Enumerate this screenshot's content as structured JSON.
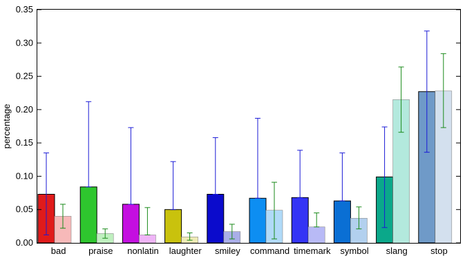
{
  "chart_data": {
    "type": "bar",
    "ylabel": "percentage",
    "xlabel": "",
    "title": "",
    "ylim": [
      0,
      0.35
    ],
    "yticks": [
      "0.00",
      "0.05",
      "0.10",
      "0.15",
      "0.20",
      "0.25",
      "0.30",
      "0.35"
    ],
    "grid": false,
    "categories": [
      "bad",
      "praise",
      "nonlatin",
      "laughter",
      "smiley",
      "command",
      "timemark",
      "symbol",
      "slang",
      "stop"
    ],
    "colors": [
      "#e01b1b",
      "#2ec62e",
      "#c40fe0",
      "#c9c20d",
      "#0b0bcc",
      "#0d8ef2",
      "#3434f5",
      "#0a6fd4",
      "#0ba88a",
      "#6f9ac8"
    ],
    "light_colors": [
      "#f7b9b9",
      "#bff0bf",
      "#efb4f7",
      "#eeeab5",
      "#a9aee8",
      "#b0daf8",
      "#b8baf6",
      "#b2d0ee",
      "#b3e9dd",
      "#d3e0ee"
    ],
    "series": [
      {
        "values": [
          0.073,
          0.084,
          0.058,
          0.05,
          0.073,
          0.067,
          0.068,
          0.063,
          0.099,
          0.227
        ],
        "err_low": [
          0.012,
          0.084,
          0.058,
          0.05,
          0.073,
          0.067,
          0.068,
          0.063,
          0.023,
          0.136
        ],
        "err_high": [
          0.135,
          0.212,
          0.173,
          0.122,
          0.158,
          0.187,
          0.139,
          0.135,
          0.174,
          0.318
        ],
        "err_color": "#1a1ad6"
      },
      {
        "values": [
          0.04,
          0.014,
          0.012,
          0.009,
          0.017,
          0.049,
          0.024,
          0.037,
          0.215,
          0.228
        ],
        "err_low": [
          0.022,
          0.007,
          0.012,
          0.004,
          0.006,
          0.006,
          0.024,
          0.021,
          0.166,
          0.173
        ],
        "err_high": [
          0.058,
          0.021,
          0.053,
          0.015,
          0.028,
          0.091,
          0.045,
          0.054,
          0.264,
          0.284
        ],
        "err_color": "#1a8a1a"
      }
    ]
  }
}
